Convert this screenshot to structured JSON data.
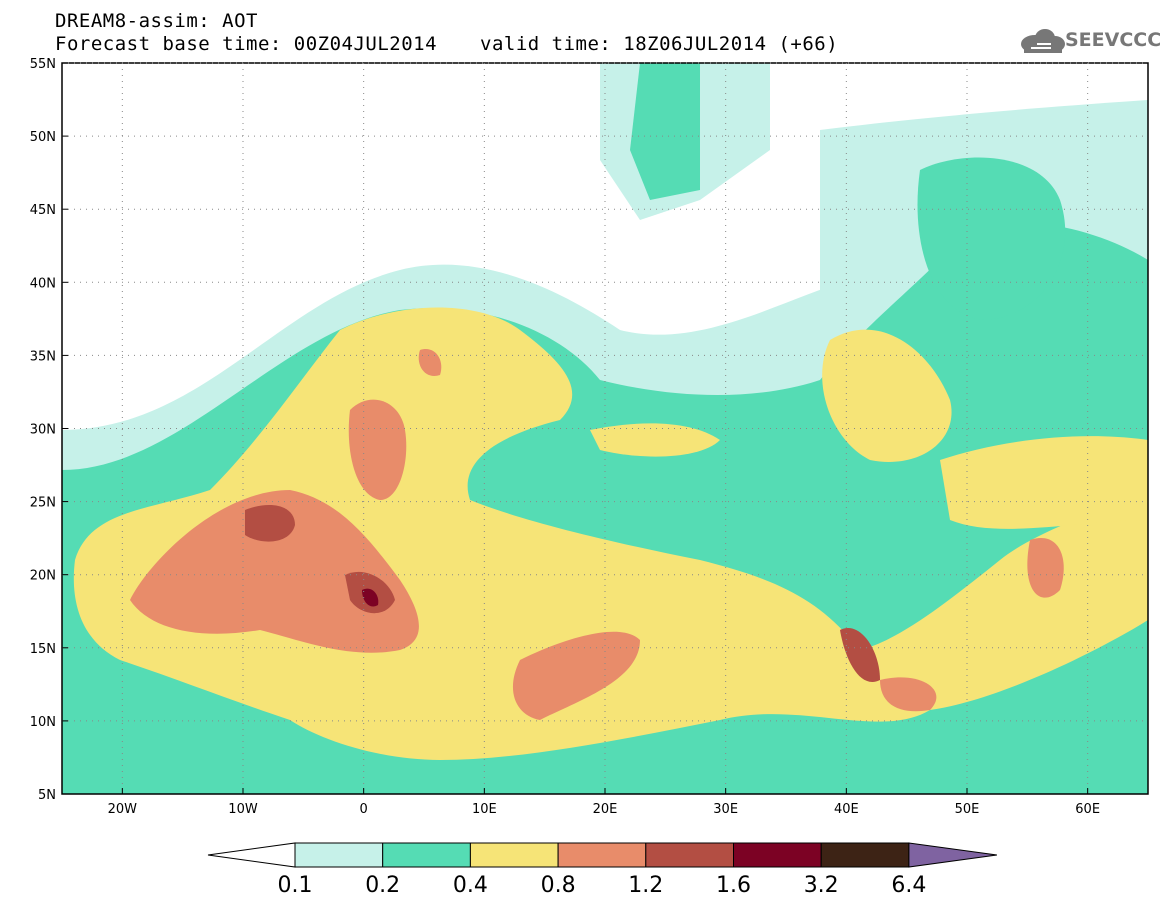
{
  "header": {
    "line1": "DREAM8-assim: AOT",
    "line2": "Forecast base time: 00Z04JUL2014",
    "line3": "valid time: 18Z06JUL2014 (+66)",
    "logo_text": "SEEVCCC"
  },
  "map": {
    "lon_range": [
      -25,
      65
    ],
    "lat_range": [
      5,
      55
    ],
    "lon_ticks": [
      {
        "value": -20,
        "label": "20W"
      },
      {
        "value": -10,
        "label": "10W"
      },
      {
        "value": 0,
        "label": "0"
      },
      {
        "value": 10,
        "label": "10E"
      },
      {
        "value": 20,
        "label": "20E"
      },
      {
        "value": 30,
        "label": "30E"
      },
      {
        "value": 40,
        "label": "40E"
      },
      {
        "value": 50,
        "label": "50E"
      },
      {
        "value": 60,
        "label": "60E"
      }
    ],
    "lat_ticks": [
      {
        "value": 55,
        "label": "55N"
      },
      {
        "value": 50,
        "label": "50N"
      },
      {
        "value": 45,
        "label": "45N"
      },
      {
        "value": 40,
        "label": "40N"
      },
      {
        "value": 35,
        "label": "35N"
      },
      {
        "value": 30,
        "label": "30N"
      },
      {
        "value": 25,
        "label": "25N"
      },
      {
        "value": 20,
        "label": "20N"
      },
      {
        "value": 15,
        "label": "15N"
      },
      {
        "value": 10,
        "label": "10N"
      }
    ],
    "grid": "dotted"
  },
  "colorbar": {
    "colors": [
      "#ffffff",
      "#c6f1e9",
      "#55dcb4",
      "#f6e477",
      "#e88c6a",
      "#b34e43",
      "#7c0224",
      "#3d2315",
      "#7f63a1"
    ],
    "labels": [
      "0.1",
      "0.2",
      "0.4",
      "0.8",
      "1.2",
      "1.6",
      "3.2",
      "6.4"
    ]
  }
}
